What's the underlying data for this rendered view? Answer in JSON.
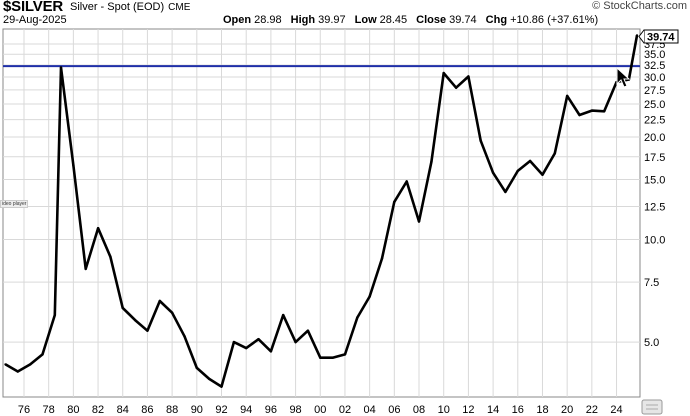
{
  "header": {
    "ticker": "$SILVER",
    "description": "Silver - Spot (EOD)",
    "exchange": "CME",
    "brand": "© StockCharts.com",
    "date": "29-Aug-2025",
    "open_label": "Open",
    "open": "28.98",
    "high_label": "High",
    "high": "39.97",
    "low_label": "Low",
    "low": "28.45",
    "close_label": "Close",
    "close": "39.74",
    "chg_label": "Chg",
    "chg": "+10.86 (+37.61%)"
  },
  "overlay_label": "ideo player",
  "last_price_label": "39.74",
  "colors": {
    "price_line": "#000000",
    "resistance_line": "#1f2fa8",
    "grid": "#d9d9d9",
    "background": "#ffffff"
  },
  "chart_data": {
    "type": "line",
    "yscale": "log",
    "ylim": [
      3.45,
      41.5
    ],
    "xlim": [
      1974.3,
      2025.9
    ],
    "y_ticks": [
      "5.0",
      "7.5",
      "10.0",
      "12.5",
      "15.0",
      "17.5",
      "20.0",
      "22.5",
      "25.0",
      "27.5",
      "30.0",
      "32.5",
      "35.0",
      "37.5"
    ],
    "x_ticks": [
      "76",
      "78",
      "80",
      "82",
      "84",
      "86",
      "88",
      "90",
      "92",
      "94",
      "96",
      "98",
      "00",
      "02",
      "04",
      "06",
      "08",
      "10",
      "12",
      "14",
      "16",
      "18",
      "20",
      "22",
      "24"
    ],
    "horizontal_lines": [
      {
        "y": 32.3,
        "label": ""
      }
    ],
    "series": [
      {
        "x": [
          1974.5,
          1975.5,
          1976.5,
          1977.5,
          1978.5,
          1979.0,
          1980.0,
          1981.0,
          1982.0,
          1983.0,
          1984.0,
          1985.0,
          1986.0,
          1987.0,
          1988.0,
          1989.0,
          1990.0,
          1991.0,
          1992.0,
          1993.0,
          1994.0,
          1995.0,
          1996.0,
          1997.0,
          1998.0,
          1999.0,
          2000.0,
          2001.0,
          2002.0,
          2003.0,
          2004.0,
          2005.0,
          2006.0,
          2007.0,
          2008.0,
          2009.0,
          2010.0,
          2011.0,
          2012.0,
          2013.0,
          2014.0,
          2015.0,
          2016.0,
          2017.0,
          2018.0,
          2019.0,
          2020.0,
          2021.0,
          2022.0,
          2023.0,
          2024.0,
          2025.0,
          2025.66
        ],
        "values": [
          4.3,
          4.1,
          4.3,
          4.6,
          6.0,
          32.0,
          16.5,
          8.2,
          10.8,
          8.9,
          6.3,
          5.8,
          5.4,
          6.6,
          6.1,
          5.2,
          4.2,
          3.9,
          3.7,
          5.0,
          4.8,
          5.1,
          4.7,
          6.0,
          5.0,
          5.4,
          4.5,
          4.5,
          4.6,
          5.9,
          6.8,
          8.8,
          12.9,
          14.8,
          11.3,
          16.9,
          30.8,
          27.9,
          30.1,
          19.5,
          15.7,
          13.8,
          15.9,
          17.0,
          15.5,
          17.9,
          26.4,
          23.2,
          23.9,
          23.8,
          28.98,
          29.5,
          39.74
        ]
      }
    ]
  }
}
